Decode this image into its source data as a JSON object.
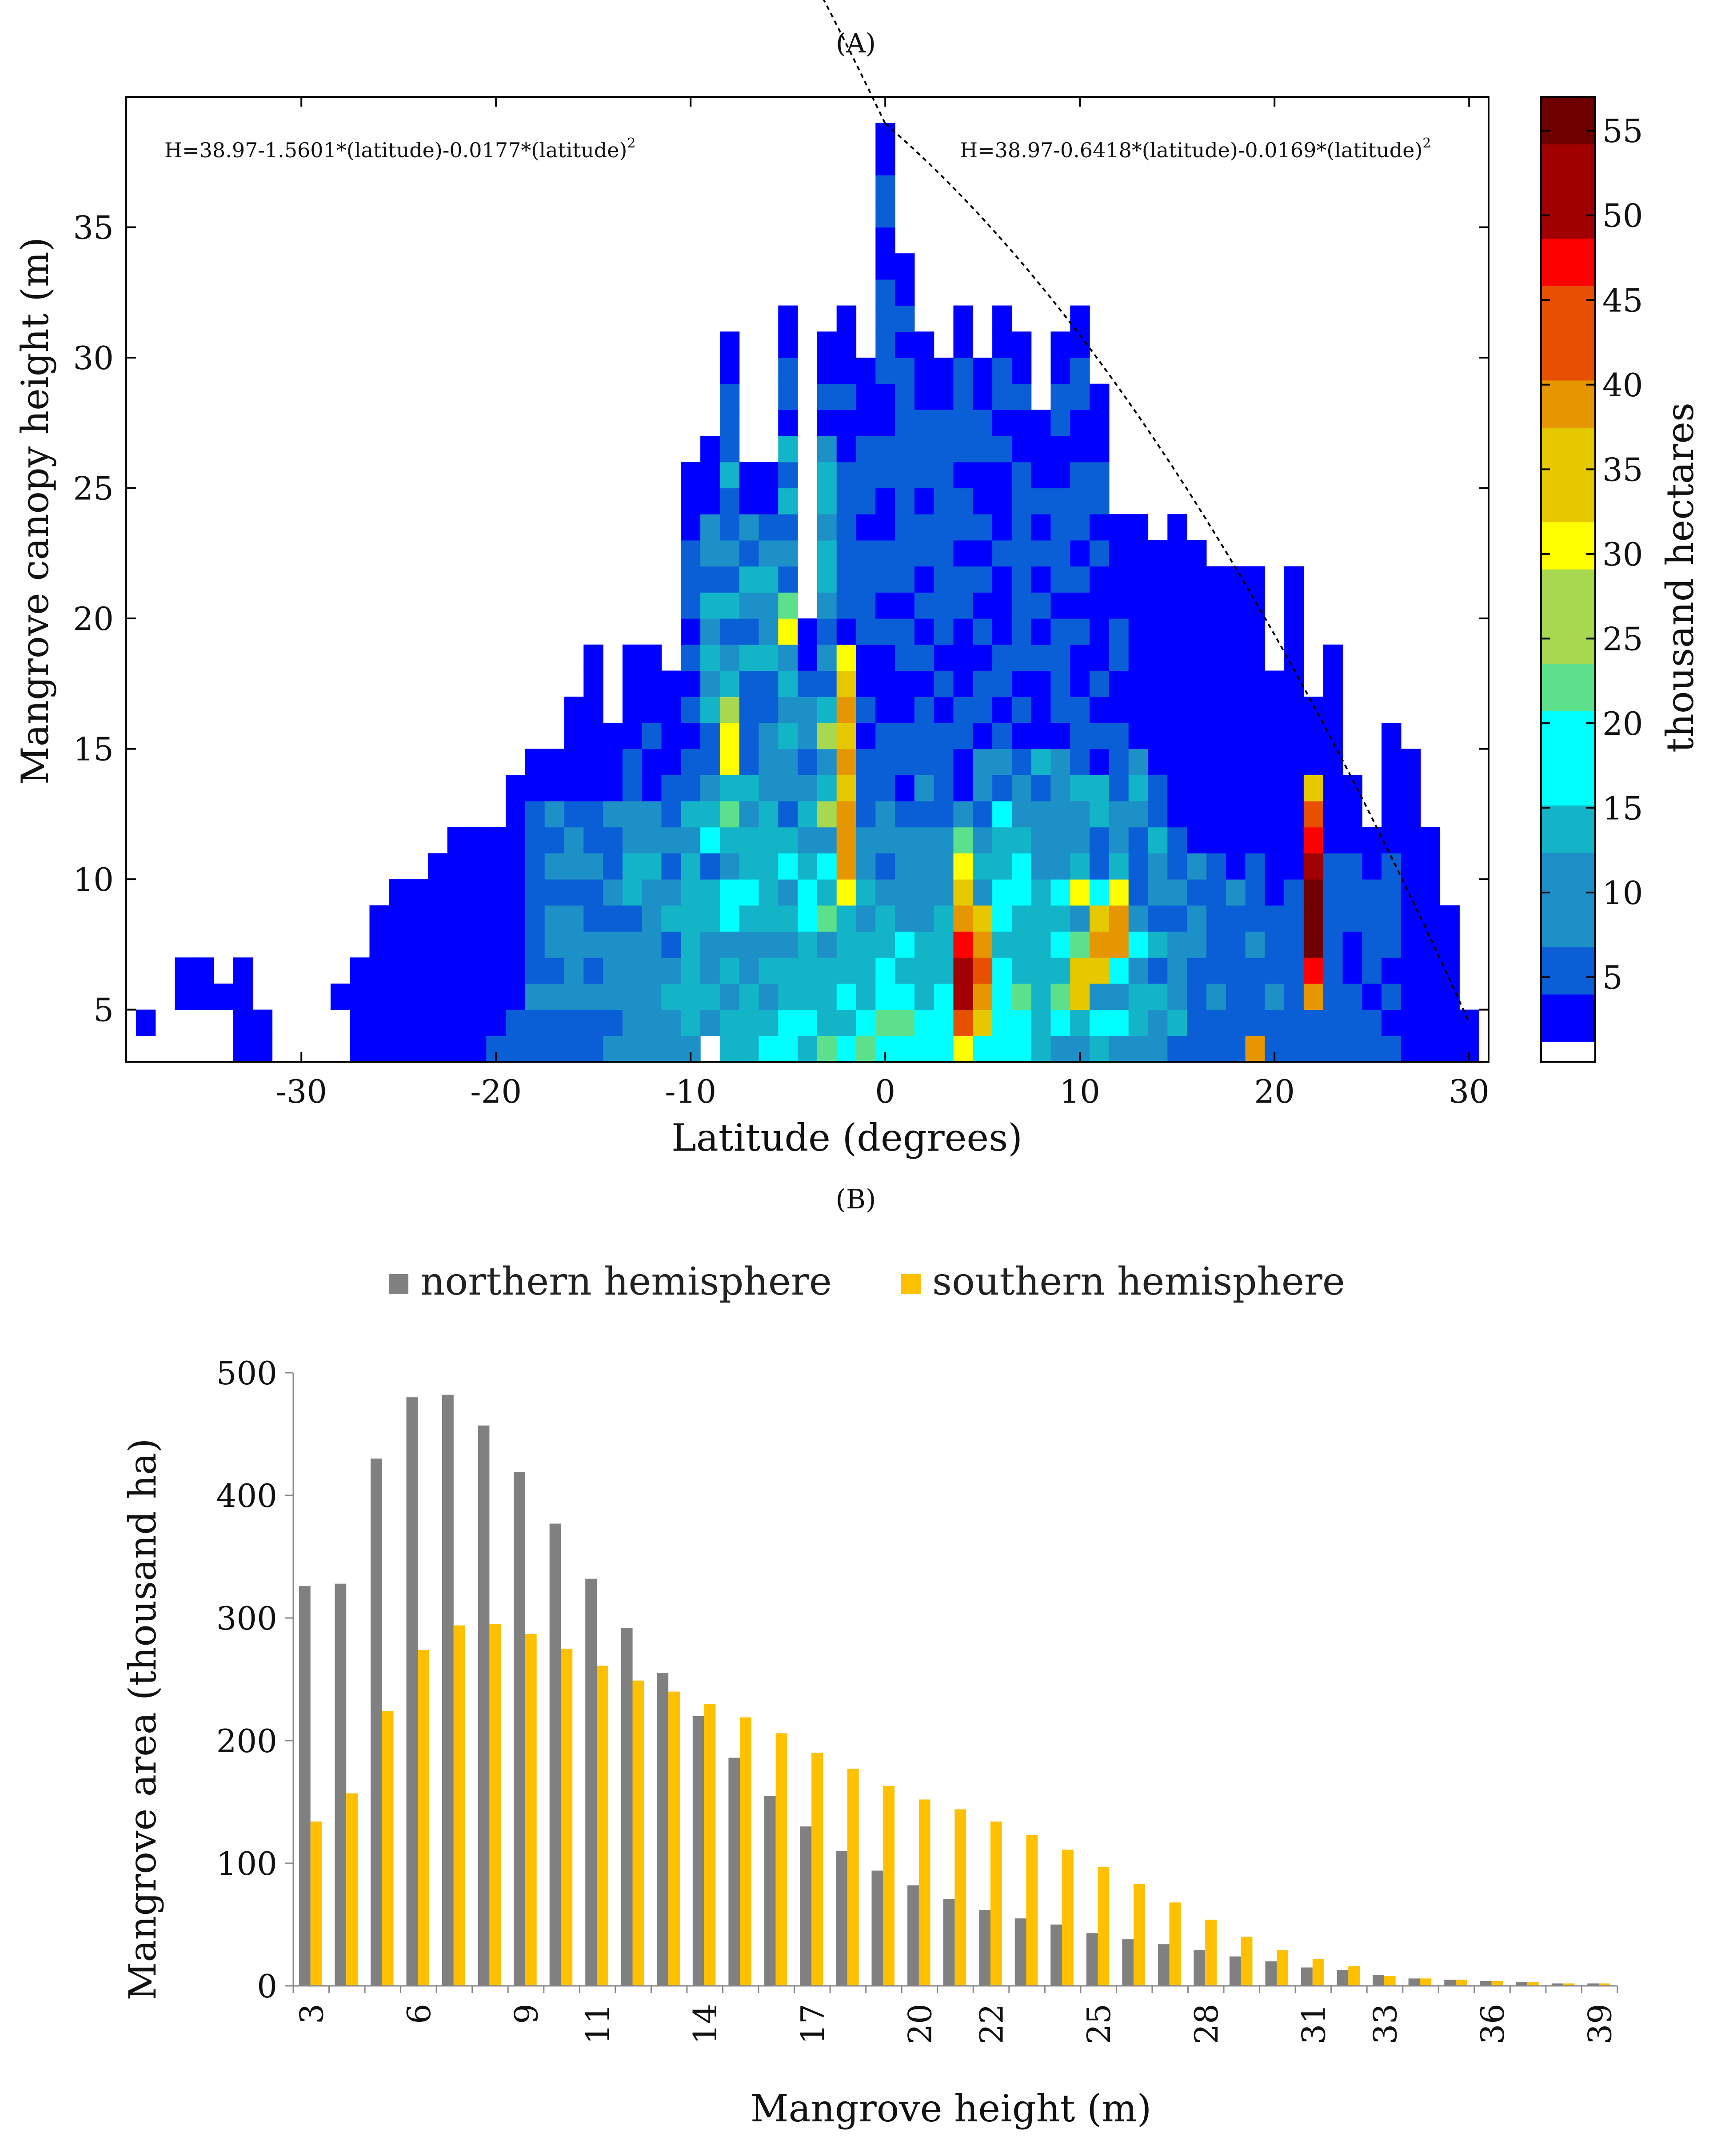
{
  "panel_a_label": "(A)",
  "panel_b_label": "(B)",
  "chart_data": [
    {
      "type": "heatmap",
      "title": "(A)",
      "xlabel": "Latitude (degrees)",
      "ylabel": "Mangrove canopy height (m)",
      "colorbar_label": "thousand hectares",
      "xlim": [
        -39,
        31
      ],
      "ylim": [
        3,
        40
      ],
      "xticks": [
        "-30",
        "-20",
        "-10",
        "0",
        "10",
        "20",
        "30"
      ],
      "yticks": [
        "5",
        "10",
        "15",
        "20",
        "25",
        "30",
        "35"
      ],
      "colorbar_ticks": [
        "5",
        "10",
        "15",
        "20",
        "25",
        "30",
        "35",
        "40",
        "45",
        "50",
        "55"
      ],
      "colorbar_range": [
        0,
        57
      ],
      "equations": {
        "south": "H=38.97-1.5601*(latitude)-0.0177*(latitude)",
        "south_exp": "2",
        "north": "H=38.97-0.6418*(latitude)-0.0169*(latitude)",
        "north_exp": "2"
      },
      "envelope": {
        "south": {
          "a": 38.97,
          "b": -1.5601,
          "c": -0.0177,
          "lat_range": [
            -38,
            0
          ]
        },
        "north": {
          "a": 38.97,
          "b": -0.6418,
          "c": -0.0169,
          "lat_range": [
            0,
            30
          ]
        }
      },
      "height_bin_m": 1,
      "lat_bin_deg": 1,
      "max_height_by_latitude": {
        "lats": [
          -38,
          -37,
          -36,
          -35,
          -34,
          -33,
          -32,
          -31,
          -30,
          -29,
          -28,
          -27,
          -26,
          -25,
          -24,
          -23,
          -22,
          -21,
          -20,
          -19,
          -18,
          -17,
          -16,
          -15,
          -14,
          -13,
          -12,
          -11,
          -10,
          -9,
          -8,
          -7,
          -6,
          -5,
          -4,
          -3,
          -2,
          -1,
          0,
          1,
          2,
          3,
          4,
          5,
          6,
          7,
          8,
          9,
          10,
          11,
          12,
          13,
          14,
          15,
          16,
          17,
          18,
          19,
          20,
          21,
          22,
          23,
          24,
          25,
          26,
          27,
          28,
          29,
          30
        ],
        "heights": [
          5,
          0,
          7,
          7,
          6,
          7,
          5,
          0,
          0,
          0,
          6,
          7,
          9,
          10,
          10,
          11,
          12,
          12,
          12,
          14,
          15,
          15,
          17,
          19,
          16,
          19,
          19,
          18,
          26,
          27,
          31,
          26,
          26,
          32,
          20,
          31,
          32,
          30,
          39,
          34,
          31,
          30,
          32,
          30,
          32,
          31,
          28,
          31,
          32,
          29,
          24,
          24,
          23,
          24,
          23,
          22,
          22,
          22,
          18,
          22,
          17,
          19,
          14,
          12,
          16,
          15,
          12,
          9,
          5
        ],
        "min_heights": [
          4,
          0,
          5,
          5,
          5,
          3,
          3,
          0,
          0,
          0,
          5,
          3,
          3,
          3,
          3,
          3,
          3,
          3,
          3,
          3,
          3,
          3,
          3,
          3,
          3,
          3,
          3,
          3,
          3,
          4,
          3,
          3,
          3,
          3,
          3,
          3,
          3,
          3,
          3,
          3,
          3,
          3,
          3,
          3,
          3,
          3,
          3,
          3,
          3,
          3,
          3,
          3,
          3,
          3,
          3,
          3,
          3,
          3,
          3,
          3,
          3,
          3,
          3,
          3,
          3,
          3,
          3,
          3,
          3
        ]
      },
      "hotspots": [
        {
          "lat": 22,
          "height": 7,
          "value": 57
        },
        {
          "lat": 22,
          "height": 8,
          "value": 55
        },
        {
          "lat": 22,
          "height": 9,
          "value": 54
        },
        {
          "lat": 22,
          "height": 10,
          "value": 50
        },
        {
          "lat": 22,
          "height": 11,
          "value": 46
        },
        {
          "lat": 22,
          "height": 12,
          "value": 44
        },
        {
          "lat": 22,
          "height": 6,
          "value": 48
        },
        {
          "lat": 22,
          "height": 13,
          "value": 36
        },
        {
          "lat": 22,
          "height": 5,
          "value": 40
        },
        {
          "lat": 4,
          "height": 5,
          "value": 50
        },
        {
          "lat": 4,
          "height": 6,
          "value": 52
        },
        {
          "lat": 4,
          "height": 7,
          "value": 45
        },
        {
          "lat": 4,
          "height": 4,
          "value": 44
        },
        {
          "lat": 4,
          "height": 8,
          "value": 40
        },
        {
          "lat": 4,
          "height": 9,
          "value": 36
        },
        {
          "lat": 5,
          "height": 5,
          "value": 40
        },
        {
          "lat": 5,
          "height": 6,
          "value": 42
        },
        {
          "lat": 5,
          "height": 7,
          "value": 38
        },
        {
          "lat": 5,
          "height": 4,
          "value": 36
        },
        {
          "lat": 5,
          "height": 8,
          "value": 33
        },
        {
          "lat": 4,
          "height": 3,
          "value": 30
        },
        {
          "lat": -2,
          "height": 10,
          "value": 38
        },
        {
          "lat": -2,
          "height": 11,
          "value": 40
        },
        {
          "lat": -2,
          "height": 12,
          "value": 38
        },
        {
          "lat": -2,
          "height": 13,
          "value": 36
        },
        {
          "lat": -2,
          "height": 14,
          "value": 40
        },
        {
          "lat": -2,
          "height": 15,
          "value": 35
        },
        {
          "lat": -2,
          "height": 16,
          "value": 38
        },
        {
          "lat": -2,
          "height": 17,
          "value": 36
        },
        {
          "lat": -2,
          "height": 18,
          "value": 32
        },
        {
          "lat": -2,
          "height": 9,
          "value": 30
        },
        {
          "lat": -3,
          "height": 12,
          "value": 28
        },
        {
          "lat": -3,
          "height": 15,
          "value": 25
        },
        {
          "lat": 11,
          "height": 6,
          "value": 34
        },
        {
          "lat": 11,
          "height": 7,
          "value": 40
        },
        {
          "lat": 12,
          "height": 7,
          "value": 40
        },
        {
          "lat": 12,
          "height": 8,
          "value": 38
        },
        {
          "lat": 11,
          "height": 8,
          "value": 36
        },
        {
          "lat": 10,
          "height": 5,
          "value": 34
        },
        {
          "lat": 10,
          "height": 6,
          "value": 36
        },
        {
          "lat": 12,
          "height": 9,
          "value": 32
        },
        {
          "lat": 10,
          "height": 9,
          "value": 30
        },
        {
          "lat": 19,
          "height": 3,
          "value": 40
        },
        {
          "lat": 4,
          "height": 10,
          "value": 32
        },
        {
          "lat": 4,
          "height": 11,
          "value": 24
        },
        {
          "lat": -8,
          "height": 14,
          "value": 32
        },
        {
          "lat": -8,
          "height": 15,
          "value": 30
        },
        {
          "lat": -8,
          "height": 16,
          "value": 28
        },
        {
          "lat": -8,
          "height": 12,
          "value": 22
        },
        {
          "lat": -5,
          "height": 19,
          "value": 30
        },
        {
          "lat": -5,
          "height": 20,
          "value": 22
        }
      ]
    },
    {
      "type": "bar",
      "title": "(B)",
      "xlabel": "Mangrove height (m)",
      "ylabel": "Mangrove area (thousand ha)",
      "ylim": [
        0,
        500
      ],
      "yticks": [
        "0",
        "100",
        "200",
        "300",
        "400",
        "500"
      ],
      "categories": [
        "3",
        "4",
        "5",
        "6",
        "7",
        "8",
        "9",
        "10",
        "11",
        "12",
        "13",
        "14",
        "15",
        "16",
        "17",
        "18",
        "19",
        "20",
        "21",
        "22",
        "23",
        "24",
        "25",
        "26",
        "27",
        "28",
        "29",
        "30",
        "31",
        "32",
        "33",
        "34",
        "35",
        "36",
        "37",
        "38",
        "39"
      ],
      "category_tick_labels": [
        "3",
        "6",
        "9",
        "11",
        "14",
        "17",
        "20",
        "22",
        "25",
        "28",
        "31",
        "33",
        "36",
        "39"
      ],
      "category_tick_indices": [
        0,
        3,
        6,
        8,
        11,
        14,
        17,
        19,
        22,
        25,
        28,
        30,
        33,
        36
      ],
      "series": [
        {
          "name": "northern hemisphere",
          "color": "#808080",
          "values": [
            326,
            328,
            430,
            480,
            482,
            457,
            419,
            377,
            332,
            292,
            255,
            220,
            186,
            155,
            130,
            110,
            94,
            82,
            71,
            62,
            55,
            50,
            43,
            38,
            34,
            29,
            24,
            20,
            15,
            13,
            9,
            6,
            5,
            4,
            3,
            2,
            2
          ]
        },
        {
          "name": "southern hemisphere",
          "color": "#FFC000",
          "values": [
            134,
            157,
            224,
            274,
            294,
            295,
            287,
            275,
            261,
            249,
            240,
            230,
            219,
            206,
            190,
            177,
            163,
            152,
            144,
            134,
            123,
            111,
            97,
            83,
            68,
            54,
            40,
            29,
            22,
            16,
            8,
            6,
            5,
            4,
            3,
            2,
            2
          ]
        }
      ]
    }
  ]
}
